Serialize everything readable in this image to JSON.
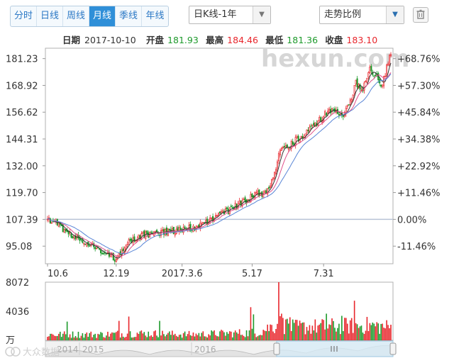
{
  "toolbar": {
    "period_tabs": [
      "分时",
      "日线",
      "周线",
      "月线",
      "季线",
      "年线"
    ],
    "active_tab": "月线",
    "kline_select": "日K线-1年",
    "ratio_select": "走势比例"
  },
  "colors": {
    "up": "#e8262c",
    "down": "#1d9a2b",
    "ma_pink": "#e0508a",
    "ma_blue": "#5a86d6",
    "accent": "#2f8fd8"
  },
  "info_bar": {
    "date_label": "日期",
    "date": "2017-10-10",
    "open_label": "开盘",
    "open": "181.93",
    "high_label": "最高",
    "high": "184.46",
    "low_label": "最低",
    "low": "181.36",
    "close_label": "收盘",
    "close": "183.10"
  },
  "watermark": "hexun.com",
  "scrollbar": {
    "labels": [
      "2014",
      "2015",
      "2016"
    ]
  },
  "logo_text": "大众数据",
  "chart_data": {
    "type": "candlestick",
    "price_ticks": [
      "181.23",
      "168.92",
      "156.62",
      "144.31",
      "132.00",
      "119.70",
      "107.39",
      "95.08"
    ],
    "pct_ticks": [
      "+68.76%",
      "+57.30%",
      "+45.84%",
      "+34.38%",
      "+22.92%",
      "+11.46%",
      "0.00%",
      "-11.46%"
    ],
    "price_range": [
      87.0,
      186.0
    ],
    "base_price": 107.39,
    "x_ticks": [
      {
        "label": "10.6",
        "index": 0
      },
      {
        "label": "12.19",
        "index": 49
      },
      {
        "label": "2017.3.6",
        "index": 96
      },
      {
        "label": "5.17",
        "index": 146
      },
      {
        "label": "7.31",
        "index": 197
      }
    ],
    "volume_ticks": [
      "8072",
      "4036"
    ],
    "volume_unit": "万",
    "volume_max": 8072,
    "n_days": 246,
    "close_keyframes": [
      [
        0,
        107.4
      ],
      [
        10,
        103.5
      ],
      [
        20,
        99.0
      ],
      [
        30,
        96.0
      ],
      [
        42,
        92.0
      ],
      [
        48,
        89.5
      ],
      [
        58,
        96.5
      ],
      [
        68,
        100.0
      ],
      [
        80,
        101.2
      ],
      [
        95,
        102.5
      ],
      [
        110,
        104.5
      ],
      [
        125,
        110.0
      ],
      [
        138,
        115.0
      ],
      [
        148,
        118.5
      ],
      [
        156,
        120.0
      ],
      [
        162,
        128.0
      ],
      [
        166,
        139.0
      ],
      [
        172,
        141.0
      ],
      [
        180,
        145.0
      ],
      [
        190,
        150.0
      ],
      [
        198,
        156.0
      ],
      [
        205,
        158.5
      ],
      [
        210,
        153.5
      ],
      [
        215,
        160.0
      ],
      [
        220,
        170.0
      ],
      [
        225,
        167.0
      ],
      [
        230,
        176.0
      ],
      [
        235,
        174.0
      ],
      [
        238,
        168.0
      ],
      [
        242,
        177.0
      ],
      [
        245,
        183.1
      ]
    ],
    "volume_keyframes": [
      [
        0,
        900
      ],
      [
        40,
        900
      ],
      [
        60,
        1100
      ],
      [
        100,
        900
      ],
      [
        150,
        1200
      ],
      [
        165,
        2600
      ],
      [
        175,
        2000
      ],
      [
        210,
        2200
      ],
      [
        230,
        2300
      ],
      [
        245,
        2000
      ]
    ],
    "volume_spikes": [
      [
        14,
        2600
      ],
      [
        51,
        2700
      ],
      [
        58,
        3300
      ],
      [
        80,
        2700
      ],
      [
        145,
        4600
      ],
      [
        147,
        3600
      ],
      [
        165,
        8072
      ],
      [
        167,
        3700
      ],
      [
        170,
        2900
      ],
      [
        173,
        3200
      ],
      [
        199,
        3700
      ],
      [
        210,
        3400
      ],
      [
        219,
        5500
      ]
    ]
  }
}
